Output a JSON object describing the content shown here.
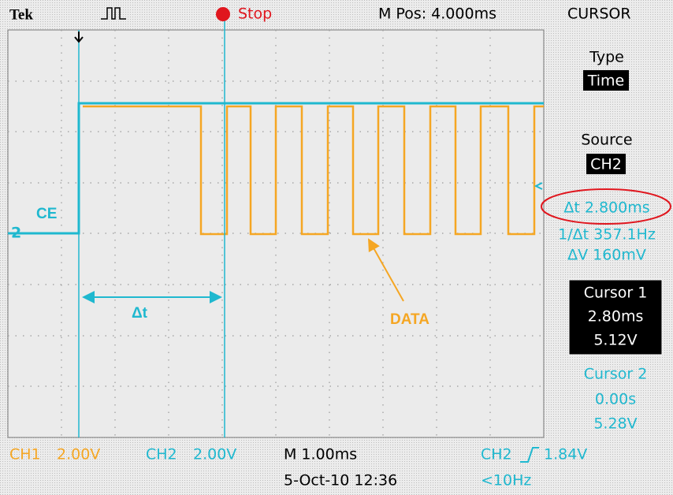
{
  "header": {
    "brand": "Tek",
    "state": "Stop",
    "position": "M Pos: 4.000ms",
    "menu": "CURSOR"
  },
  "side_panel": {
    "type_label": "Type",
    "type_value": "Time",
    "source_label": "Source",
    "source_value": "CH2",
    "delta_t": "Δt 2.800ms",
    "inverse_delta_t": "1/Δt 357.1Hz",
    "delta_v": "ΔV 160mV",
    "cursor1": {
      "title": "Cursor 1",
      "time": "2.80ms",
      "volts": "5.12V"
    },
    "cursor2": {
      "title": "Cursor 2",
      "time": "0.00s",
      "volts": "5.28V"
    }
  },
  "footer": {
    "ch1": "CH1",
    "ch1_scale": "2.00V",
    "ch2": "CH2",
    "ch2_scale": "2.00V",
    "timebase": "M 1.00ms",
    "datetime": "5-Oct-10 12:36",
    "trigger_source": "CH2",
    "trigger_level": "1.84V",
    "frequency": "<10Hz"
  },
  "annotations": {
    "ch2_marker": "2",
    "ce": "CE",
    "delta": "Δt",
    "data": "DATA"
  }
}
